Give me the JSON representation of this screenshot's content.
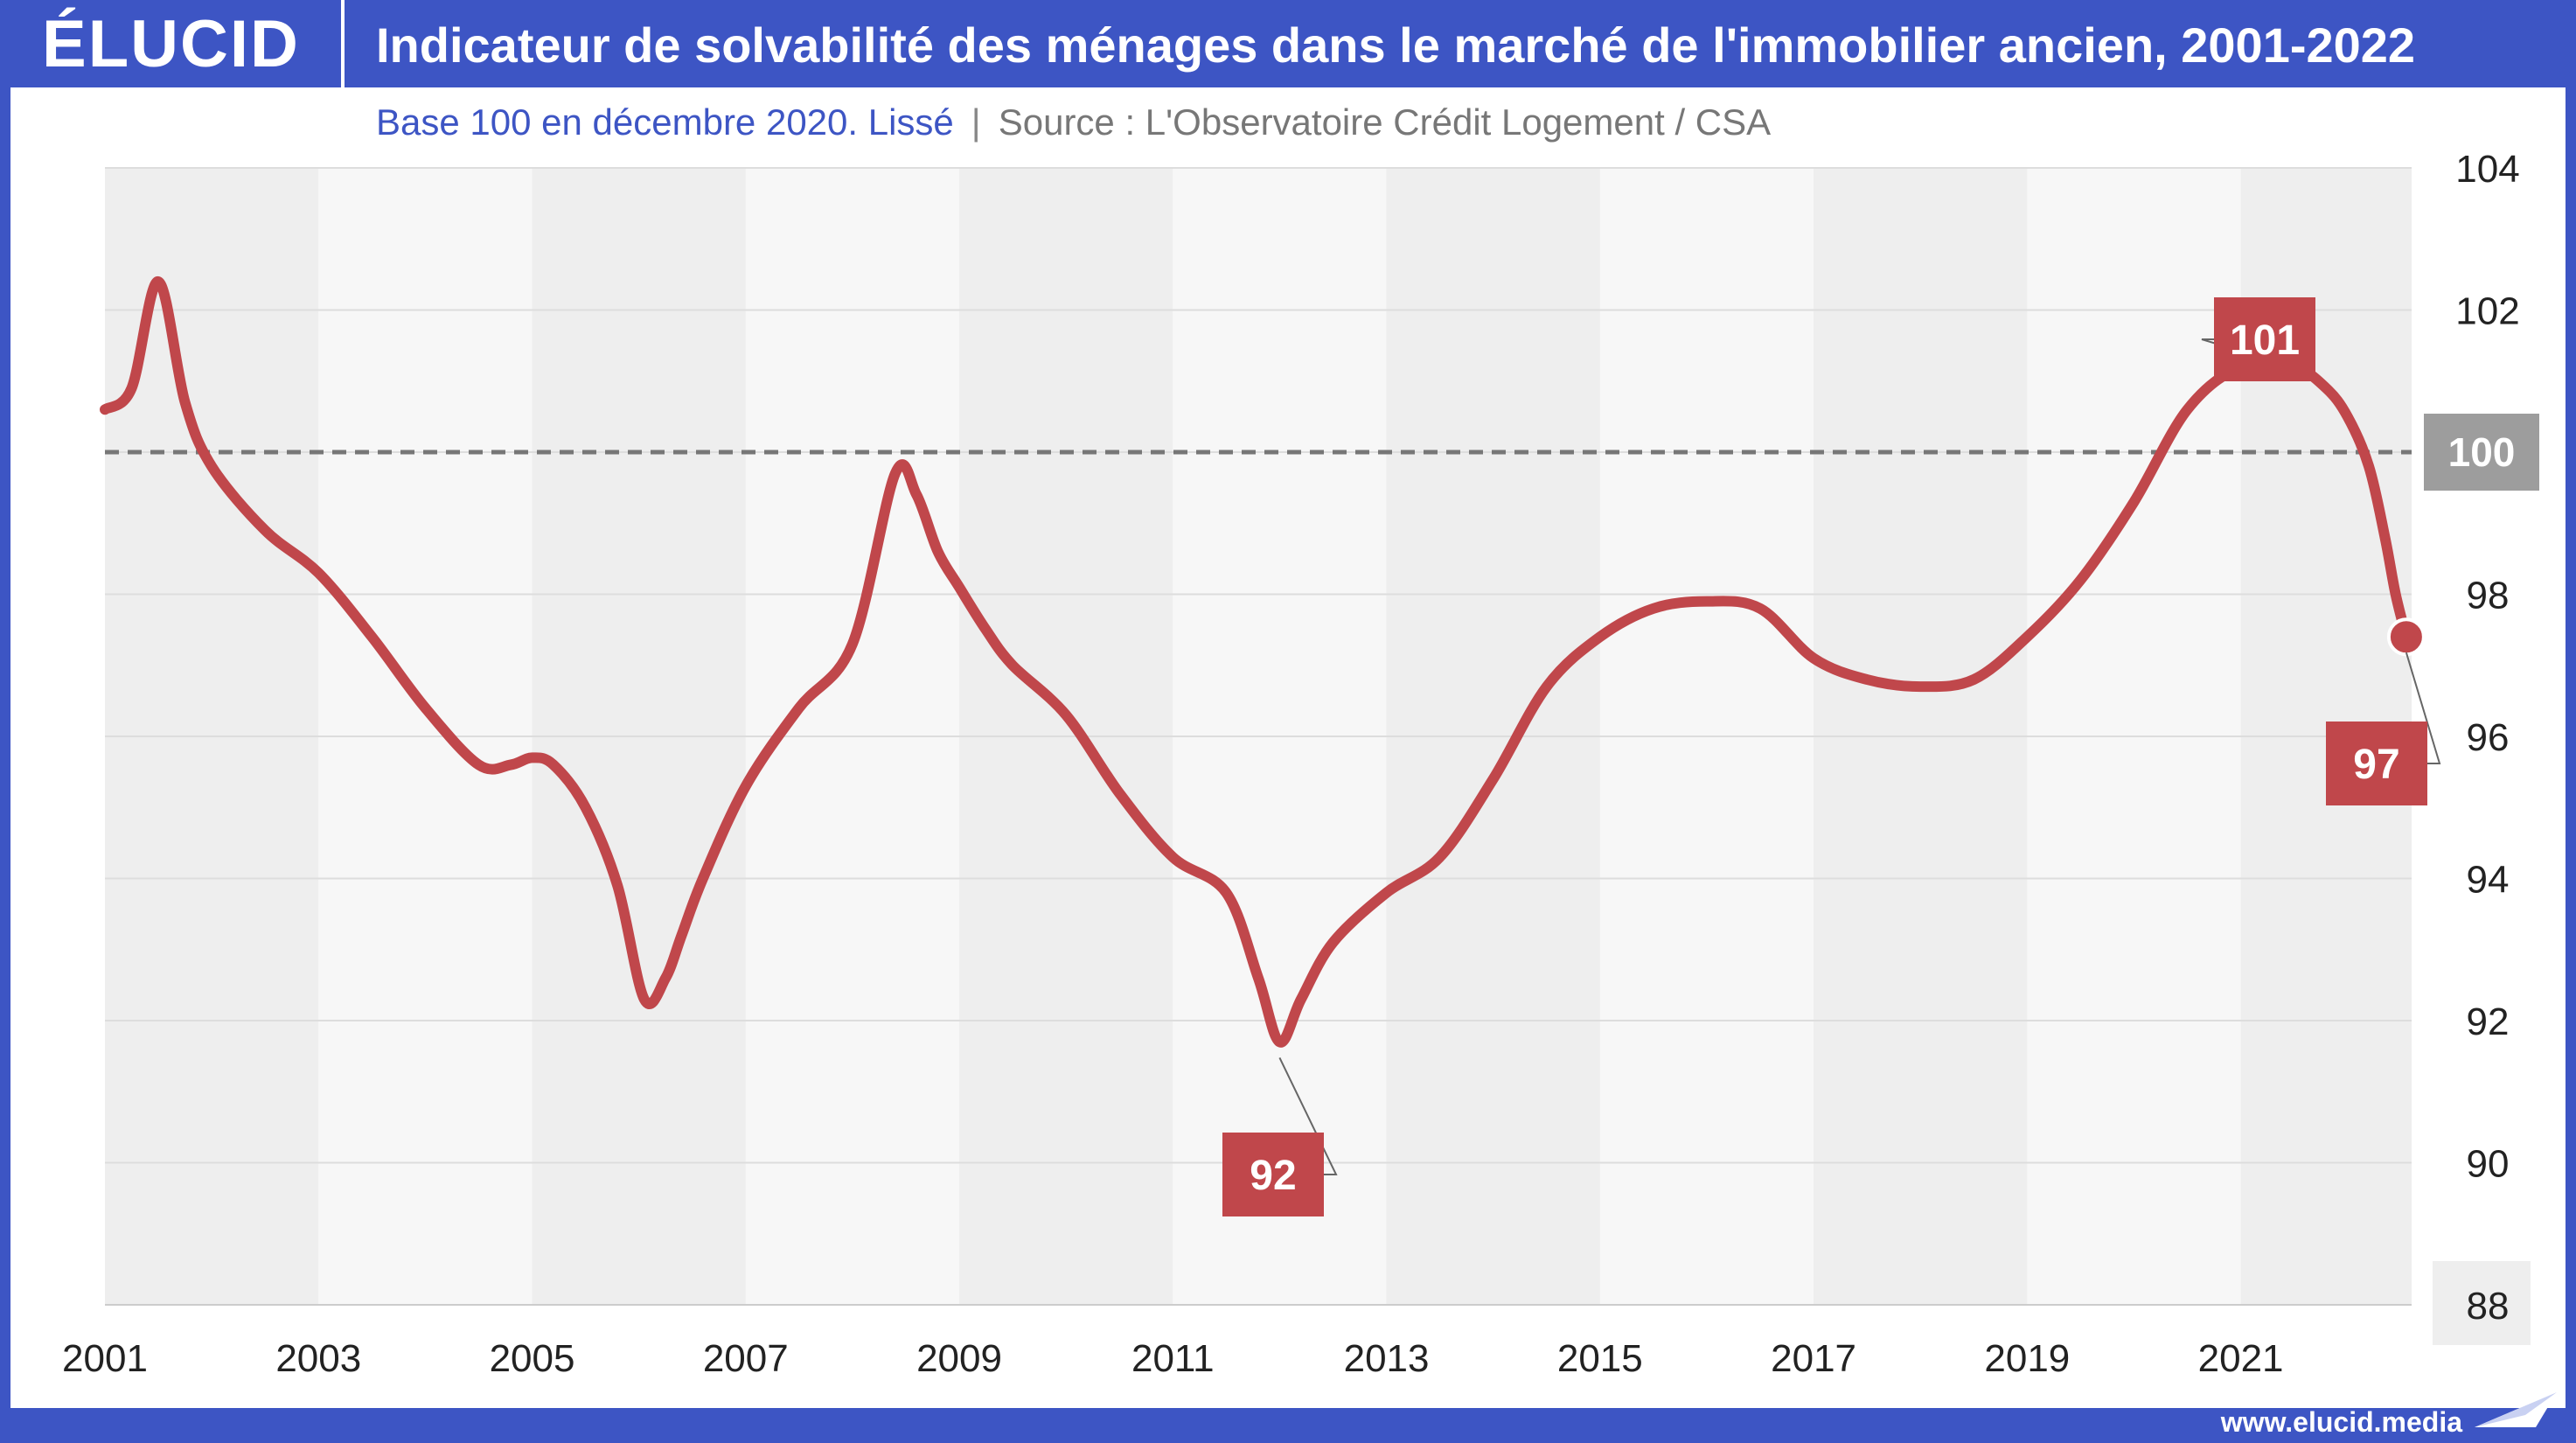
{
  "header": {
    "logo": "ÉLUCID",
    "title": "Indicateur de solvabilité des ménages dans le marché de l'immobilier ancien, 2001-2022"
  },
  "subtitle": {
    "base": "Base 100 en décembre 2020. Lissé",
    "separator": "|",
    "source": "Source :  L'Observatoire Crédit Logement / CSA"
  },
  "footer": {
    "url": "www.elucid.media"
  },
  "colors": {
    "brand": "#3d55c4",
    "line": "#c0474b",
    "reference": "#777777",
    "label_bg": "#c0474b",
    "ref_label_bg": "#9d9d9d"
  },
  "chart_data": {
    "type": "line",
    "xlim": [
      2001,
      2022.6
    ],
    "ylim": [
      88,
      104
    ],
    "x_ticks": [
      "2001",
      "2003",
      "2005",
      "2007",
      "2009",
      "2011",
      "2013",
      "2015",
      "2017",
      "2019",
      "2021"
    ],
    "y_ticks": [
      "104",
      "102",
      "100",
      "98",
      "96",
      "94",
      "92",
      "90",
      "88"
    ],
    "reference_line": {
      "value": 100,
      "label": "100"
    },
    "series": [
      {
        "x": [
          2001.0,
          2001.25,
          2001.5,
          2001.75,
          2002.0,
          2002.5,
          2003.0,
          2003.5,
          2004.0,
          2004.5,
          2004.8,
          2005.0,
          2005.2,
          2005.5,
          2005.8,
          2006.05,
          2006.25,
          2006.4,
          2006.6,
          2007.0,
          2007.5,
          2008.0,
          2008.4,
          2008.6,
          2008.8,
          2009.0,
          2009.25,
          2009.5,
          2010.0,
          2010.5,
          2011.0,
          2011.5,
          2011.8,
          2012.0,
          2012.2,
          2012.5,
          2013.0,
          2013.5,
          2014.0,
          2014.5,
          2015.0,
          2015.5,
          2016.0,
          2016.5,
          2017.0,
          2017.5,
          2018.0,
          2018.5,
          2019.0,
          2019.5,
          2020.0,
          2020.5,
          2021.0,
          2021.5,
          2021.8,
          2022.0,
          2022.2,
          2022.35,
          2022.45,
          2022.55
        ],
        "y": [
          100.6,
          100.9,
          102.4,
          100.7,
          99.8,
          98.9,
          98.3,
          97.4,
          96.4,
          95.6,
          95.6,
          95.7,
          95.6,
          95.0,
          93.9,
          92.3,
          92.6,
          93.2,
          94.0,
          95.3,
          96.4,
          97.3,
          99.7,
          99.4,
          98.6,
          98.1,
          97.5,
          97.0,
          96.3,
          95.2,
          94.3,
          93.8,
          92.6,
          91.7,
          92.3,
          93.1,
          93.8,
          94.3,
          95.4,
          96.7,
          97.4,
          97.8,
          97.9,
          97.8,
          97.1,
          96.8,
          96.7,
          96.8,
          97.4,
          98.2,
          99.3,
          100.6,
          101.2,
          101.2,
          100.9,
          100.5,
          99.8,
          98.8,
          98.0,
          97.4
        ]
      }
    ],
    "annotations": [
      {
        "text": "101",
        "x": 2021.0,
        "y": 101.2
      },
      {
        "text": "92",
        "x": 2012.0,
        "y": 91.7
      },
      {
        "text": "97",
        "x": 2022.55,
        "y": 97.4
      }
    ]
  }
}
